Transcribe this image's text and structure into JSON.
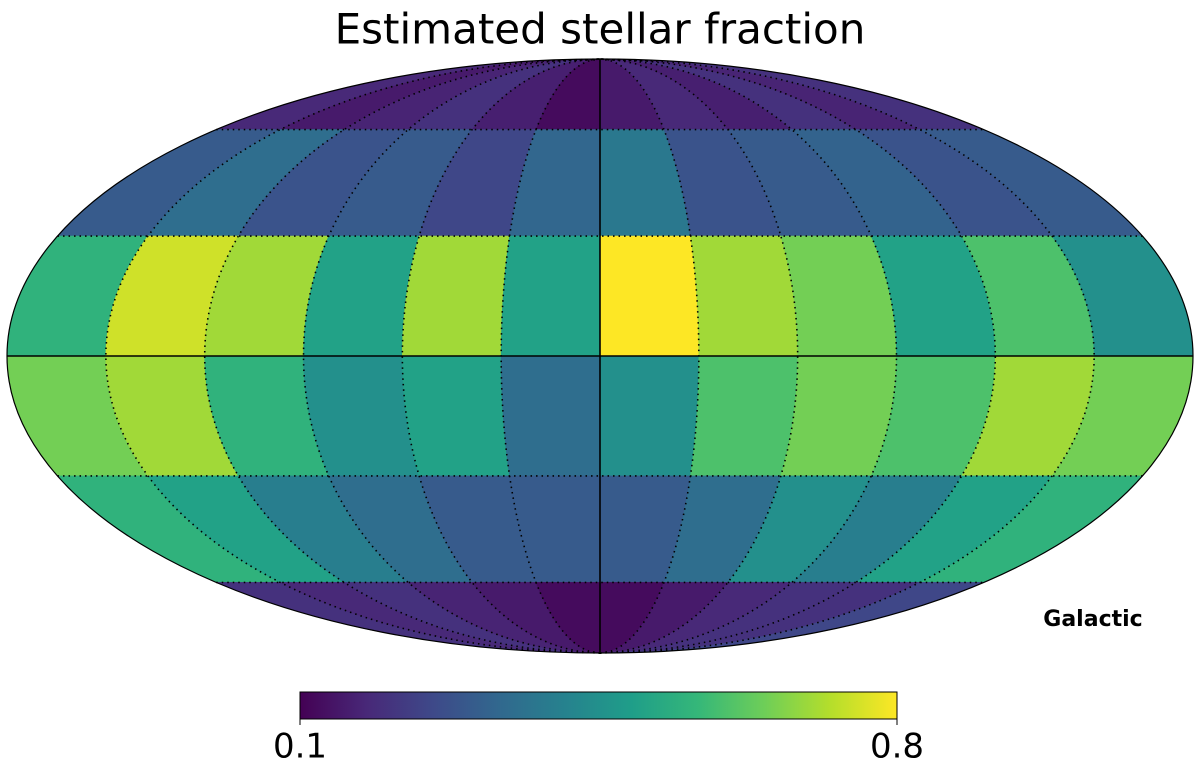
{
  "chart_data": {
    "type": "mollweide",
    "title": "Estimated stellar fraction",
    "coord": "Galactic",
    "graticule": true,
    "colormap": [
      "#440154",
      "#482878",
      "#3e4989",
      "#31688e",
      "#26828e",
      "#1f9e89",
      "#35b779",
      "#6ece58",
      "#b5de2b",
      "#fde725"
    ],
    "clim": [
      0.1,
      0.8
    ],
    "cticks": [
      0.1,
      0.8
    ],
    "values": [
      [
        0.18,
        0.15,
        0.17,
        0.2,
        0.16,
        0.12,
        0.15,
        0.18,
        0.16,
        0.2,
        0.17,
        0.2
      ],
      [
        0.3,
        0.35,
        0.28,
        0.3,
        0.25,
        0.33,
        0.38,
        0.28,
        0.3,
        0.32,
        0.28,
        0.3
      ],
      [
        0.55,
        0.75,
        0.7,
        0.5,
        0.7,
        0.5,
        0.8,
        0.7,
        0.65,
        0.5,
        0.6,
        0.45
      ],
      [
        0.65,
        0.7,
        0.55,
        0.45,
        0.5,
        0.35,
        0.45,
        0.6,
        0.65,
        0.6,
        0.7,
        0.65
      ],
      [
        0.55,
        0.5,
        0.4,
        0.35,
        0.3,
        0.3,
        0.3,
        0.35,
        0.45,
        0.4,
        0.5,
        0.55
      ],
      [
        0.2,
        0.18,
        0.2,
        0.17,
        0.15,
        0.12,
        0.12,
        0.15,
        0.18,
        0.2,
        0.2,
        0.25
      ]
    ]
  }
}
